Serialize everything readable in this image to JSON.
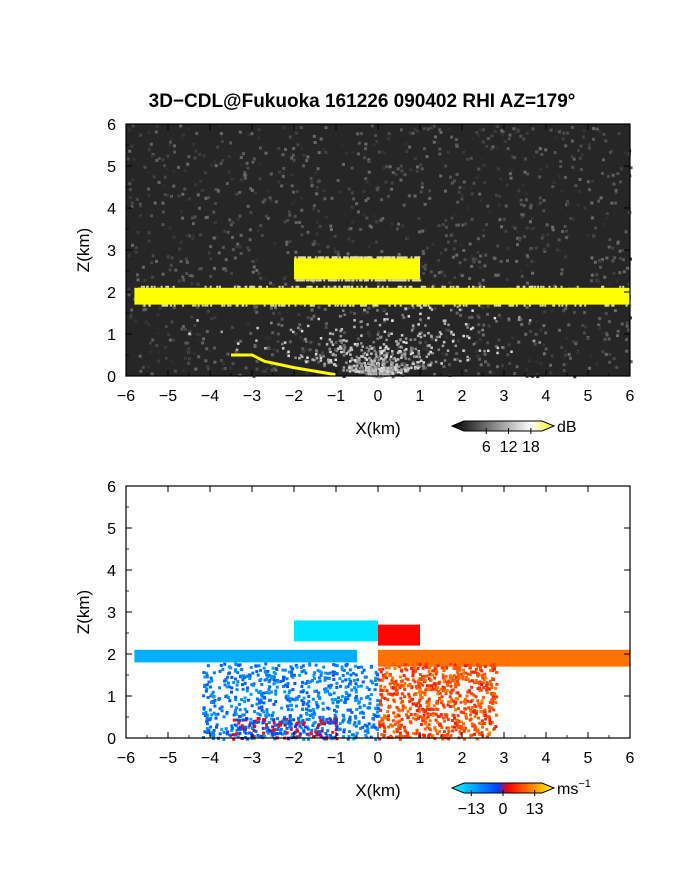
{
  "title": "3D−CDL@Fukuoka 161226 090402 RHI AZ=179°",
  "chart_data": [
    {
      "type": "heatmap",
      "quantity": "reflectivity",
      "xlabel": "X(km)",
      "ylabel": "Z(km)",
      "xlim": [
        -6,
        6
      ],
      "ylim": [
        0,
        6
      ],
      "x_ticks": [
        "−6",
        "−5",
        "−4",
        "−3",
        "−2",
        "−1",
        "0",
        "1",
        "2",
        "3",
        "4",
        "5",
        "6"
      ],
      "y_ticks": [
        "0",
        "1",
        "2",
        "3",
        "4",
        "5",
        "6"
      ],
      "background": "noisy grey, higher returns fanning from origin",
      "colorbar": {
        "unit": "dB",
        "ticks": [
          "6",
          "12",
          "18"
        ],
        "tick_values": [
          6,
          12,
          18
        ],
        "range": [
          0,
          21
        ],
        "colors": [
          "#000000",
          "#ffffff",
          "#ffff00"
        ]
      },
      "features": [
        {
          "name": "main cloud layer",
          "color": "#ffff00",
          "x_range": [
            -5.8,
            6.0
          ],
          "z_range": [
            1.7,
            2.1
          ]
        },
        {
          "name": "upper cloud patch",
          "color": "#ffff00",
          "x_range": [
            -2.0,
            1.0
          ],
          "z_range": [
            2.3,
            2.8
          ]
        },
        {
          "name": "surface clutter",
          "color": "#ffff00",
          "x_range": [
            -3.5,
            -1.0
          ],
          "z_range": [
            0.0,
            0.5
          ]
        }
      ]
    },
    {
      "type": "heatmap",
      "quantity": "radial velocity",
      "xlabel": "X(km)",
      "ylabel": "Z(km)",
      "xlim": [
        -6,
        6
      ],
      "ylim": [
        0,
        6
      ],
      "x_ticks": [
        "−6",
        "−5",
        "−4",
        "−3",
        "−2",
        "−1",
        "0",
        "1",
        "2",
        "3",
        "4",
        "5",
        "6"
      ],
      "y_ticks": [
        "0",
        "1",
        "2",
        "3",
        "4",
        "5",
        "6"
      ],
      "colorbar": {
        "unit": "ms",
        "unit_exponent": "−1",
        "ticks": [
          "−13",
          "0",
          "13"
        ],
        "tick_values": [
          -13,
          0,
          13
        ],
        "range": [
          -16,
          16
        ],
        "colors": [
          "#00ffff",
          "#0040ff",
          "#ff0000",
          "#ffff00"
        ]
      },
      "features": [
        {
          "name": "cloud layer west",
          "velocity": -10,
          "x_range": [
            -5.8,
            -0.5
          ],
          "z_range": [
            1.8,
            2.1
          ]
        },
        {
          "name": "cloud layer east",
          "velocity": 8,
          "x_range": [
            0.0,
            6.0
          ],
          "z_range": [
            1.7,
            2.1
          ]
        },
        {
          "name": "upper patch west",
          "velocity": -14,
          "x_range": [
            -2.0,
            0.0
          ],
          "z_range": [
            2.3,
            2.8
          ]
        },
        {
          "name": "upper patch east",
          "velocity": 2,
          "x_range": [
            0.0,
            1.0
          ],
          "z_range": [
            2.2,
            2.7
          ]
        },
        {
          "name": "low level west",
          "velocity": -6,
          "x_range": [
            -4.2,
            0.0
          ],
          "z_range": [
            0.0,
            1.8
          ]
        },
        {
          "name": "low level east",
          "velocity": 6,
          "x_range": [
            0.0,
            2.8
          ],
          "z_range": [
            0.0,
            1.8
          ]
        },
        {
          "name": "surface strip",
          "velocity": 0,
          "x_range": [
            -3.5,
            -1.0
          ],
          "z_range": [
            0.0,
            0.5
          ]
        }
      ]
    }
  ]
}
